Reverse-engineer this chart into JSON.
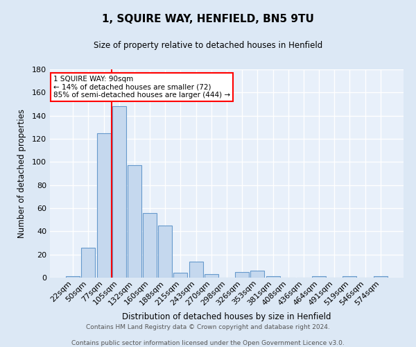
{
  "title": "1, SQUIRE WAY, HENFIELD, BN5 9TU",
  "subtitle": "Size of property relative to detached houses in Henfield",
  "xlabel": "Distribution of detached houses by size in Henfield",
  "ylabel": "Number of detached properties",
  "footer_line1": "Contains HM Land Registry data © Crown copyright and database right 2024.",
  "footer_line2": "Contains public sector information licensed under the Open Government Licence v3.0.",
  "categories": [
    "22sqm",
    "50sqm",
    "77sqm",
    "105sqm",
    "132sqm",
    "160sqm",
    "188sqm",
    "215sqm",
    "243sqm",
    "270sqm",
    "298sqm",
    "326sqm",
    "353sqm",
    "381sqm",
    "408sqm",
    "436sqm",
    "464sqm",
    "491sqm",
    "519sqm",
    "546sqm",
    "574sqm"
  ],
  "values": [
    1,
    26,
    125,
    148,
    97,
    56,
    45,
    4,
    14,
    3,
    0,
    5,
    6,
    1,
    0,
    0,
    1,
    0,
    1,
    0,
    1
  ],
  "bar_color": "#c5d8ee",
  "bar_edge_color": "#6699cc",
  "red_line_x": 2.5,
  "annotation_title": "1 SQUIRE WAY: 90sqm",
  "annotation_line1": "← 14% of detached houses are smaller (72)",
  "annotation_line2": "85% of semi-detached houses are larger (444) →",
  "ylim": [
    0,
    180
  ],
  "yticks": [
    0,
    20,
    40,
    60,
    80,
    100,
    120,
    140,
    160,
    180
  ],
  "bg_color": "#dce8f5",
  "plot_bg_color": "#e8f0fa",
  "grid_color": "#ffffff",
  "footer_bg": "#ffffff"
}
